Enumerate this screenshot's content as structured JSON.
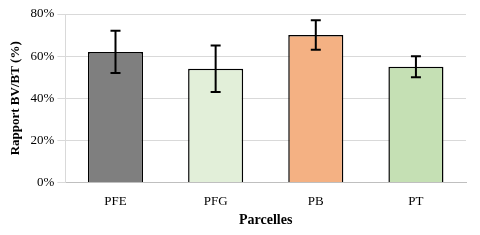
{
  "chart_data": {
    "type": "bar",
    "x_label": "Parcelles",
    "y_label": "Rapport BV/BT (%)",
    "categories": [
      "PFE",
      "PFG",
      "PB",
      "PT"
    ],
    "values": [
      62,
      54,
      70,
      55
    ],
    "errors": [
      10,
      11,
      7,
      5
    ],
    "colors": [
      "#7f7f7f",
      "#e2efd9",
      "#f4b183",
      "#c5e0b4"
    ],
    "ylim": [
      0,
      80
    ],
    "yticks": [
      {
        "value": 0,
        "label": "0%"
      },
      {
        "value": 20,
        "label": "20%"
      },
      {
        "value": 40,
        "label": "40%"
      },
      {
        "value": 60,
        "label": "60%"
      },
      {
        "value": 80,
        "label": "80%"
      }
    ],
    "grid": true
  }
}
